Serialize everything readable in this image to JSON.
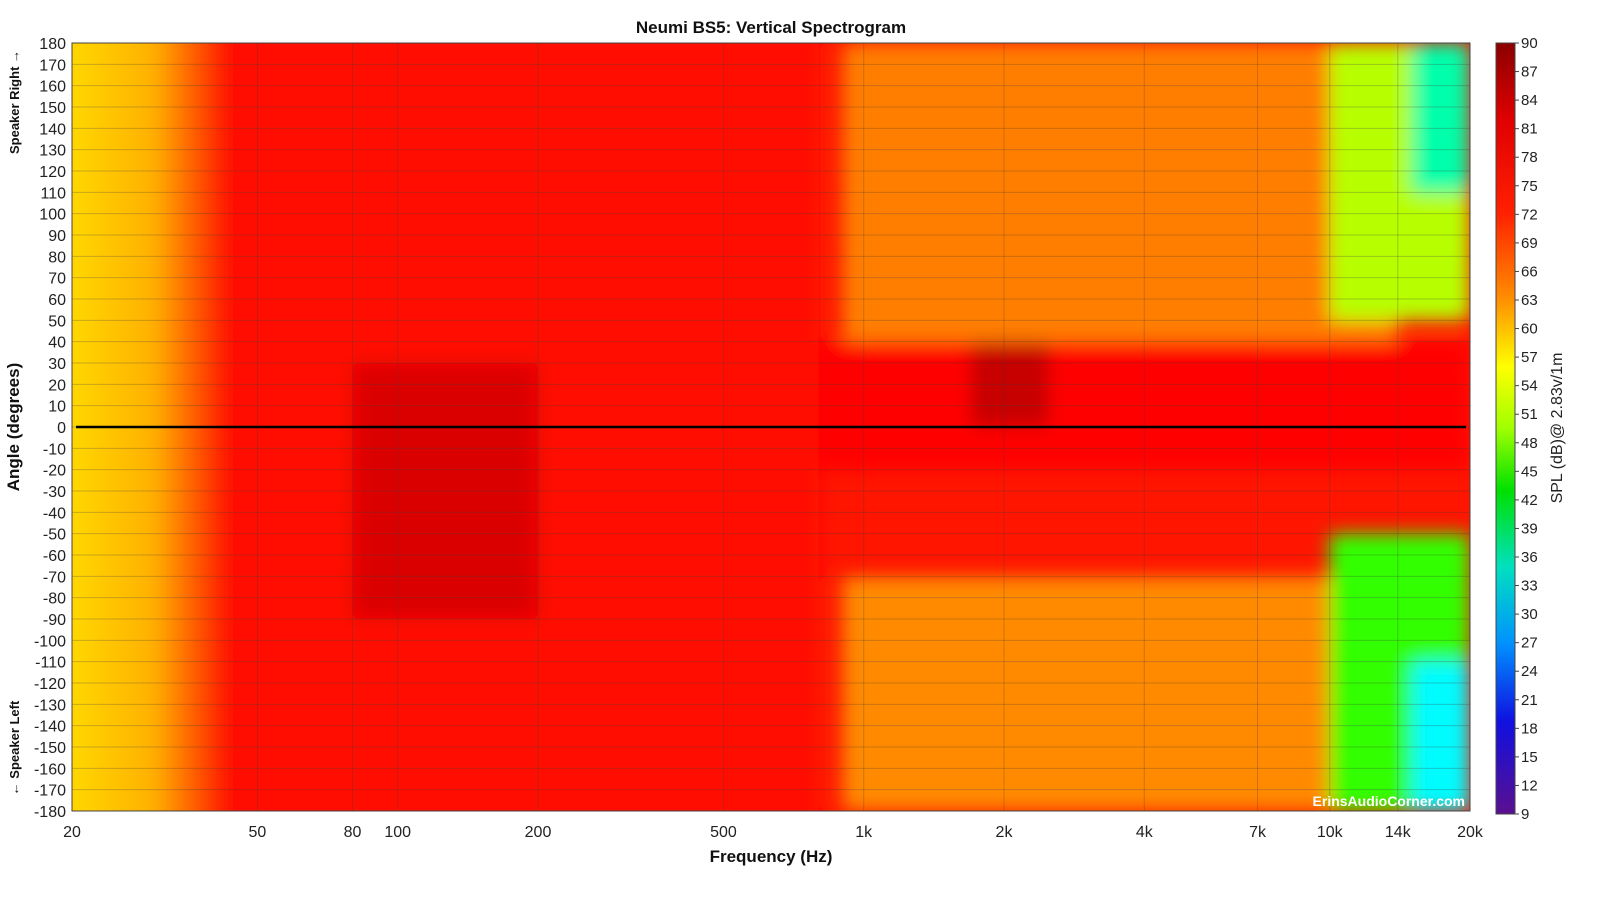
{
  "chart_data": {
    "type": "heatmap",
    "title": "Neumi BS5: Vertical Spectrogram",
    "xlabel": "Frequency (Hz)",
    "ylabel": "Angle (degrees)",
    "y_top_label": "Speaker Right →",
    "y_bottom_label": "← Speaker Left",
    "colorbar_label": "SPL (dB)@ 2.83v/1m",
    "watermark": "ErinsAudioCorner.com",
    "x_scale": "log",
    "xlim": [
      20,
      20000
    ],
    "ylim": [
      -180,
      180
    ],
    "clim": [
      9,
      90
    ],
    "grid": true,
    "x_ticks": [
      {
        "value": 20,
        "label": "20"
      },
      {
        "value": 50,
        "label": "50"
      },
      {
        "value": 80,
        "label": "80"
      },
      {
        "value": 100,
        "label": "100"
      },
      {
        "value": 200,
        "label": "200"
      },
      {
        "value": 500,
        "label": "500"
      },
      {
        "value": 1000,
        "label": "1k"
      },
      {
        "value": 2000,
        "label": "2k"
      },
      {
        "value": 4000,
        "label": "4k"
      },
      {
        "value": 7000,
        "label": "7k"
      },
      {
        "value": 10000,
        "label": "10k"
      },
      {
        "value": 14000,
        "label": "14k"
      },
      {
        "value": 20000,
        "label": "20k"
      }
    ],
    "y_ticks": [
      180,
      170,
      160,
      150,
      140,
      130,
      120,
      110,
      100,
      90,
      80,
      70,
      60,
      50,
      40,
      30,
      20,
      10,
      0,
      -10,
      -20,
      -30,
      -40,
      -50,
      -60,
      -70,
      -80,
      -90,
      -100,
      -110,
      -120,
      -130,
      -140,
      -150,
      -160,
      -170,
      -180
    ],
    "colorbar_ticks": [
      90,
      87,
      84,
      81,
      78,
      75,
      72,
      69,
      66,
      63,
      60,
      57,
      54,
      51,
      48,
      45,
      42,
      39,
      36,
      33,
      30,
      27,
      24,
      21,
      18,
      15,
      12,
      9
    ],
    "reference_line": {
      "angle": 0,
      "color": "#000000"
    },
    "colormap": [
      "#8b0000",
      "#ff0000",
      "#ff8c00",
      "#ffff00",
      "#00ff00",
      "#00ffff",
      "#0000ff",
      "#6a0dad"
    ],
    "regions": [
      {
        "freq": [
          20,
          42
        ],
        "angle": [
          -180,
          180
        ],
        "spl": 63
      },
      {
        "freq": [
          42,
          800
        ],
        "angle": [
          -180,
          180
        ],
        "spl": 77
      },
      {
        "freq": [
          80,
          200
        ],
        "angle": [
          -90,
          30
        ],
        "spl": 82
      },
      {
        "freq": [
          800,
          20000
        ],
        "angle": [
          -20,
          40
        ],
        "spl": 78
      },
      {
        "freq": [
          1700,
          2500
        ],
        "angle": [
          0,
          40
        ],
        "spl": 84
      },
      {
        "freq": [
          900,
          14000
        ],
        "angle": [
          40,
          180
        ],
        "spl": 68
      },
      {
        "freq": [
          900,
          14000
        ],
        "angle": [
          -180,
          -70
        ],
        "spl": 67
      },
      {
        "freq": [
          10000,
          20000
        ],
        "angle": [
          50,
          180
        ],
        "spl": 52
      },
      {
        "freq": [
          10000,
          20000
        ],
        "angle": [
          -180,
          -50
        ],
        "spl": 46
      },
      {
        "freq": [
          15000,
          20000
        ],
        "angle": [
          110,
          180
        ],
        "spl": 36
      },
      {
        "freq": [
          15000,
          20000
        ],
        "angle": [
          -180,
          -110
        ],
        "spl": 32
      }
    ]
  }
}
